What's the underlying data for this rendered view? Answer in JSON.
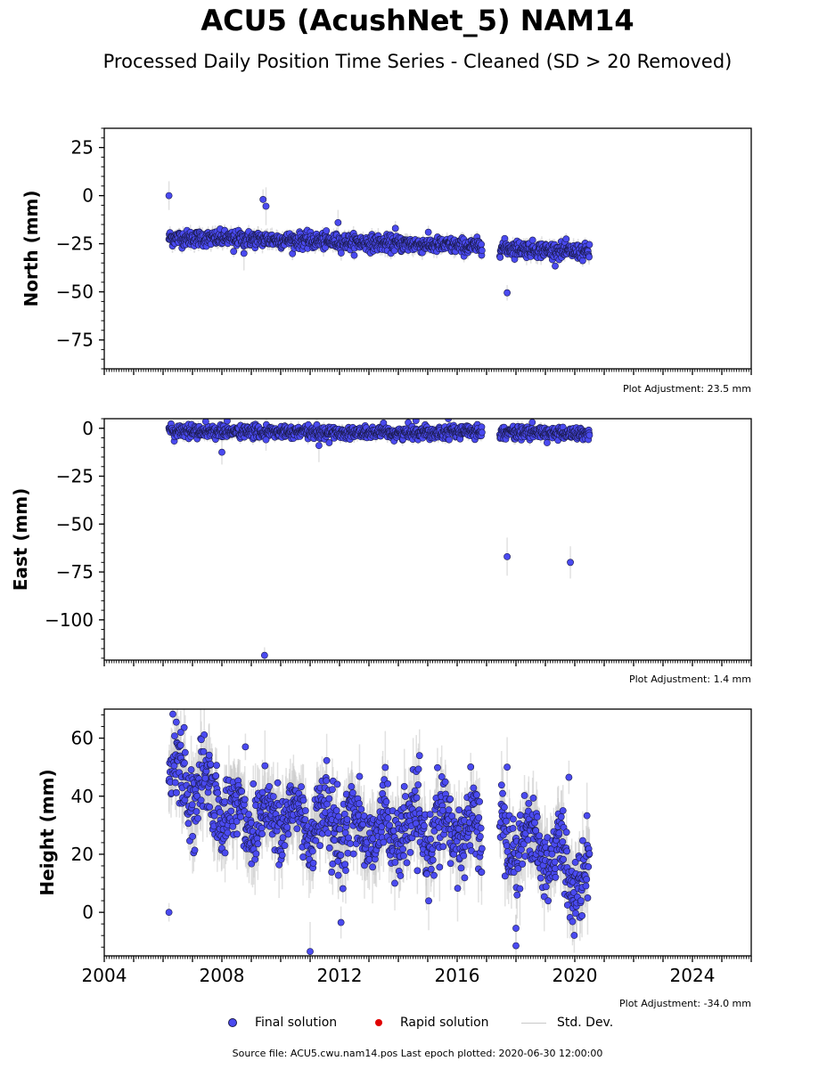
{
  "title": "ACU5 (AcushNet_5) NAM14",
  "subtitle": "Processed Daily Position Time Series - Cleaned (SD > 20 Removed)",
  "legend": {
    "final_label": "Final solution",
    "rapid_label": "Rapid solution",
    "std_label": "Std. Dev."
  },
  "colors": {
    "final": "#4a4af0",
    "rapid": "#e00000",
    "std": "#c8c8c8",
    "edge": "#1a1a4a"
  },
  "source_text": "Source file: ACU5.cwu.nam14.pos  Last epoch plotted: 2020-06-30 12:00:00",
  "chart_data": [
    {
      "type": "scatter",
      "ylabel": "North (mm)",
      "adjustment": "Plot Adjustment: 23.5 mm",
      "xlim": [
        2004.0,
        2026.0
      ],
      "ylim": [
        -90,
        35
      ],
      "yticks": [
        25,
        0,
        -25,
        -50,
        -75
      ],
      "ytick_labels": [
        "25",
        "0",
        "−25",
        "−50",
        "−75"
      ],
      "xticks": [],
      "xtick_labels": [],
      "trend": [
        [
          2006.2,
          -22
        ],
        [
          2009.0,
          -22.5
        ],
        [
          2012.0,
          -24
        ],
        [
          2014.0,
          -25
        ],
        [
          2016.8,
          -26.5
        ],
        [
          2017.5,
          -27
        ],
        [
          2020.5,
          -29.5
        ]
      ],
      "scatter_sd": 2.0,
      "outliers": [
        [
          2006.2,
          0
        ],
        [
          2009.4,
          -2
        ],
        [
          2009.5,
          -5.5
        ],
        [
          2011.95,
          -14
        ],
        [
          2013.9,
          -17
        ],
        [
          2017.7,
          -50.5
        ],
        [
          2008.75,
          -30
        ],
        [
          2008.4,
          -29
        ]
      ]
    },
    {
      "type": "scatter",
      "ylabel": "East (mm)",
      "adjustment": "Plot Adjustment: 1.4 mm",
      "xlim": [
        2004.0,
        2026.0
      ],
      "ylim": [
        -121,
        5
      ],
      "yticks": [
        0,
        -25,
        -50,
        -75,
        -100
      ],
      "ytick_labels": [
        "0",
        "−25",
        "−50",
        "−75",
        "−100"
      ],
      "xticks": [],
      "xtick_labels": [],
      "trend": [
        [
          2006.2,
          -1.5
        ],
        [
          2010.0,
          -2
        ],
        [
          2014.0,
          -2.5
        ],
        [
          2016.8,
          -1.5
        ],
        [
          2017.5,
          -2
        ],
        [
          2020.5,
          -3
        ]
      ],
      "scatter_sd": 1.6,
      "outliers": [
        [
          2008.0,
          -12.5
        ],
        [
          2009.5,
          -6
        ],
        [
          2011.3,
          -9
        ],
        [
          2017.7,
          -67
        ],
        [
          2019.85,
          -70
        ],
        [
          2009.45,
          -118.5
        ],
        [
          2007.45,
          3.5
        ],
        [
          2014.6,
          4
        ],
        [
          2015.7,
          5
        ]
      ]
    },
    {
      "type": "scatter",
      "ylabel": "Height (mm)",
      "adjustment": "Plot Adjustment: -34.0 mm",
      "xlim": [
        2004.0,
        2026.0
      ],
      "ylim": [
        -15,
        70
      ],
      "yticks": [
        60,
        40,
        20,
        0
      ],
      "ytick_labels": [
        "60",
        "40",
        "20",
        "0"
      ],
      "xticks": [
        2004,
        2008,
        2012,
        2016,
        2020,
        2024
      ],
      "xtick_labels": [
        "2004",
        "2008",
        "2012",
        "2016",
        "2020",
        "2024"
      ],
      "trend": [
        [
          2006.2,
          50
        ],
        [
          2007.5,
          40
        ],
        [
          2008.5,
          33
        ],
        [
          2010.0,
          33
        ],
        [
          2012.0,
          30
        ],
        [
          2014.0,
          28
        ],
        [
          2016.8,
          28
        ],
        [
          2017.5,
          27
        ],
        [
          2018.5,
          25
        ],
        [
          2019.5,
          18
        ],
        [
          2020.0,
          12
        ],
        [
          2020.5,
          12
        ]
      ],
      "scatter_sd": 6.5,
      "seasonal_amp": 6,
      "outliers": [
        [
          2006.2,
          0
        ],
        [
          2006.45,
          65.5
        ],
        [
          2006.6,
          62
        ],
        [
          2011.0,
          -13.5
        ],
        [
          2012.05,
          -3.5
        ],
        [
          2017.7,
          50
        ],
        [
          2018.0,
          -11.5
        ],
        [
          2018.0,
          -5.5
        ],
        [
          2019.8,
          46.5
        ],
        [
          2008.8,
          57
        ],
        [
          2007.3,
          59.5
        ]
      ]
    }
  ]
}
